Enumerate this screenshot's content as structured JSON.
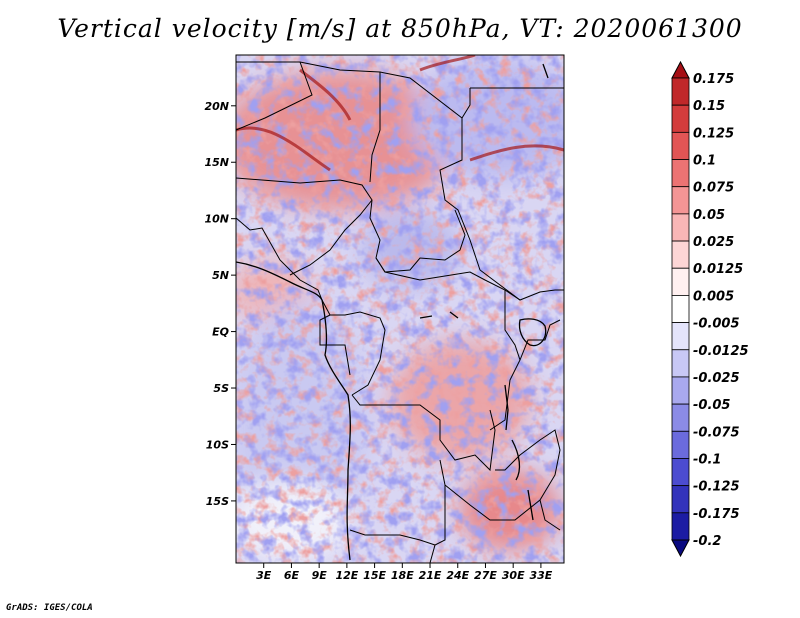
{
  "title": "Vertical velocity [m/s] at 850hPa, VT: 2020061300",
  "credit": "GrADS: IGES/COLA",
  "map": {
    "lon_range": [
      0,
      35.5
    ],
    "lat_range": [
      -20.5,
      24.5
    ],
    "lon_ticks": [
      "3E",
      "6E",
      "9E",
      "12E",
      "15E",
      "18E",
      "21E",
      "24E",
      "27E",
      "30E",
      "33E"
    ],
    "lat_ticks": [
      "20N",
      "15N",
      "10N",
      "5N",
      "EQ",
      "5S",
      "10S",
      "15S"
    ]
  },
  "colorbar": {
    "labels": [
      "0.175",
      "0.15",
      "0.125",
      "0.1",
      "0.075",
      "0.05",
      "0.025",
      "0.0125",
      "0.005",
      "-0.005",
      "-0.0125",
      "-0.025",
      "-0.05",
      "-0.075",
      "-0.1",
      "-0.125",
      "-0.175",
      "-0.2"
    ],
    "colors": [
      "#a50f15",
      "#c0282a",
      "#d33c3c",
      "#e25555",
      "#ec7373",
      "#f49595",
      "#f9b6b6",
      "#fdd6d6",
      "#fff0f0",
      "#ffffff",
      "#e4e4fb",
      "#c8c8f5",
      "#a9a9ee",
      "#8b8be6",
      "#6b6bdd",
      "#4c4cd0",
      "#3333bb",
      "#1c1ca3",
      "#0a0a80"
    ]
  }
}
